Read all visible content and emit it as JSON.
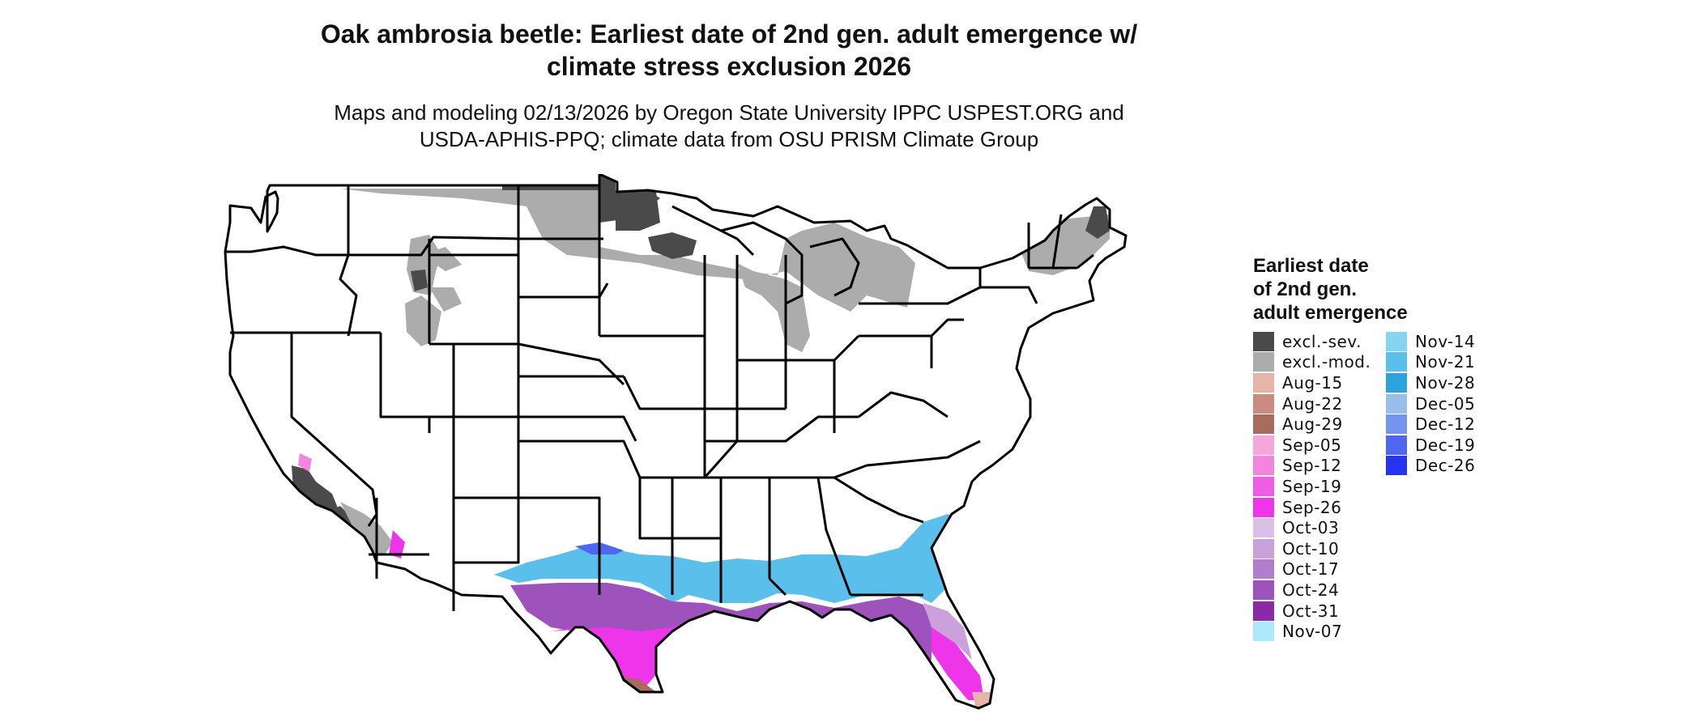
{
  "title_line1": "Oak ambrosia beetle: Earliest date of 2nd gen. adult emergence w/",
  "title_line2": "climate stress exclusion 2026",
  "subtitle_line1": "Maps and modeling 02/13/2026 by Oregon State University IPPC USPEST.ORG and",
  "subtitle_line2": "USDA-APHIS-PPQ; climate data from OSU PRISM Climate Group",
  "legend": {
    "title_line1": "Earliest date",
    "title_line2": "of 2nd gen.",
    "title_line3": "adult emergence",
    "col1": [
      {
        "label": "excl.-sev.",
        "color": "#4a4a4a"
      },
      {
        "label": "excl.-mod.",
        "color": "#acacac"
      },
      {
        "label": "Aug-15",
        "color": "#e7b4a9"
      },
      {
        "label": "Aug-22",
        "color": "#c98c80"
      },
      {
        "label": "Aug-29",
        "color": "#a86b5e"
      },
      {
        "label": "Sep-05",
        "color": "#f5a7db"
      },
      {
        "label": "Sep-12",
        "color": "#f385e2"
      },
      {
        "label": "Sep-19",
        "color": "#f05ce5"
      },
      {
        "label": "Sep-26",
        "color": "#ee35ea"
      },
      {
        "label": "Oct-03",
        "color": "#dcbfe6"
      },
      {
        "label": "Oct-10",
        "color": "#caa1db"
      },
      {
        "label": "Oct-17",
        "color": "#b47ccd"
      },
      {
        "label": "Oct-24",
        "color": "#9d52bc"
      },
      {
        "label": "Oct-31",
        "color": "#8a2aa9"
      },
      {
        "label": "Nov-07",
        "color": "#aee9fb"
      }
    ],
    "col2": [
      {
        "label": "Nov-14",
        "color": "#85d4f2"
      },
      {
        "label": "Nov-21",
        "color": "#5abfea"
      },
      {
        "label": "Nov-28",
        "color": "#2ba4de"
      },
      {
        "label": "Dec-05",
        "color": "#99bdec"
      },
      {
        "label": "Dec-12",
        "color": "#7494ee"
      },
      {
        "label": "Dec-19",
        "color": "#4f66f1"
      },
      {
        "label": "Dec-26",
        "color": "#2633f3"
      }
    ]
  }
}
